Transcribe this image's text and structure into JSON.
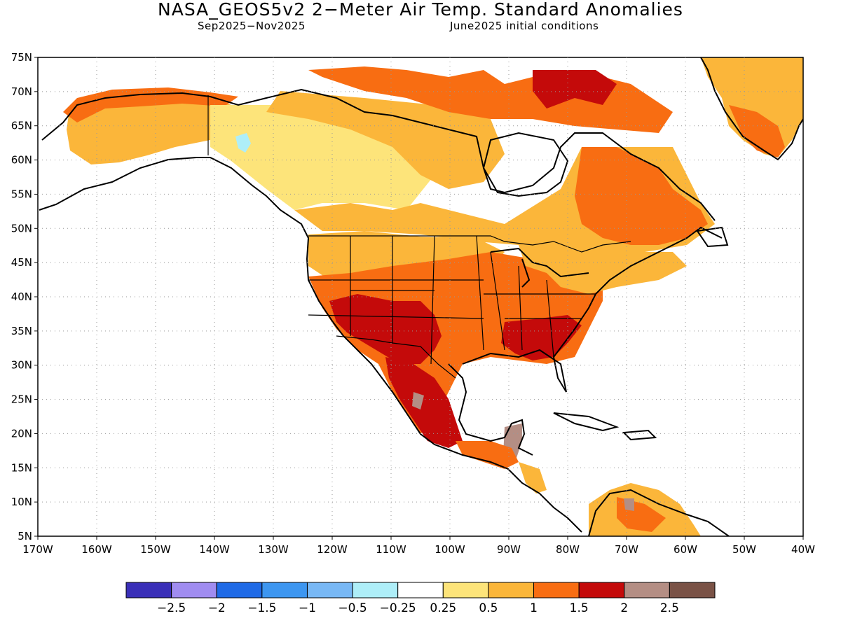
{
  "title": "NASA_GEOS5v2 2−Meter Air Temp. Standard Anomalies",
  "subtitle_left": "Sep2025−Nov2025",
  "subtitle_right": "June2025 initial conditions",
  "map": {
    "lon_range": [
      -170,
      -40
    ],
    "lat_range": [
      5,
      75
    ],
    "lat_ticks": [
      "75N",
      "70N",
      "65N",
      "60N",
      "55N",
      "50N",
      "45N",
      "40N",
      "35N",
      "30N",
      "25N",
      "20N",
      "15N",
      "10N",
      "5N"
    ],
    "lon_ticks": [
      "170W",
      "160W",
      "150W",
      "140W",
      "130W",
      "120W",
      "110W",
      "100W",
      "90W",
      "80W",
      "70W",
      "60W",
      "50W",
      "40W"
    ],
    "gridlines": "dotted"
  },
  "colorbar": {
    "bins": [
      {
        "color": "#3a2fb8"
      },
      {
        "color": "#a08cf0"
      },
      {
        "color": "#1f6ae6"
      },
      {
        "color": "#3d96f0"
      },
      {
        "color": "#78b8f5"
      },
      {
        "color": "#aeeef8"
      },
      {
        "color": "#ffffff"
      },
      {
        "color": "#fde47a"
      },
      {
        "color": "#fbb63a"
      },
      {
        "color": "#f86d12"
      },
      {
        "color": "#c40a0a"
      },
      {
        "color": "#b48e84"
      },
      {
        "color": "#7a5246"
      }
    ],
    "labels": [
      "−2.5",
      "−2",
      "−1.5",
      "−1",
      "−0.5",
      "−0.25",
      "0.25",
      "0.5",
      "1",
      "1.5",
      "2",
      "2.5"
    ]
  }
}
